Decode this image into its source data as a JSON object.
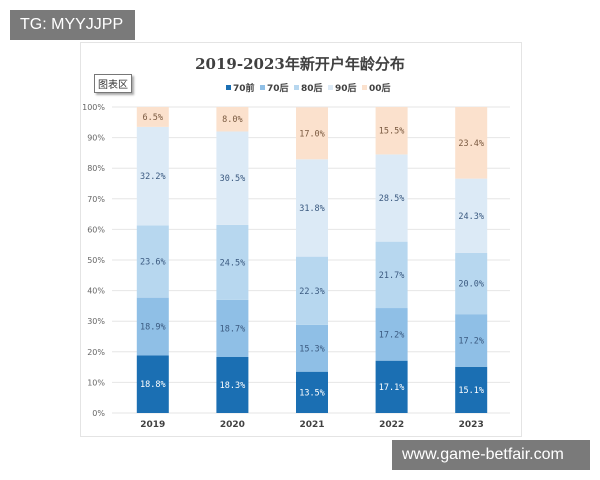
{
  "overlay": {
    "tag": "TG: MYYJJPP",
    "site": "www.game-betfair.com"
  },
  "chart_area_label": "图表区",
  "chart_data": {
    "type": "bar",
    "stacked": true,
    "percent": true,
    "title": "2019-2023年新开户年龄分布",
    "xlabel": "",
    "ylabel": "",
    "categories": [
      "2019",
      "2020",
      "2021",
      "2022",
      "2023"
    ],
    "ylim": [
      0,
      100
    ],
    "yticks": [
      "0%",
      "10%",
      "20%",
      "30%",
      "40%",
      "50%",
      "60%",
      "70%",
      "80%",
      "90%",
      "100%"
    ],
    "grid": true,
    "legend": "top-center",
    "series": [
      {
        "name": "70前",
        "color": "#1b6fb3",
        "label_color": "#ffffff",
        "values": [
          18.8,
          18.3,
          13.5,
          17.1,
          15.1
        ],
        "labels": [
          "18.8%",
          "18.3%",
          "13.5%",
          "17.1%",
          "15.1%"
        ]
      },
      {
        "name": "70后",
        "color": "#8fbfe6",
        "label_color": "#3b5a80",
        "values": [
          18.9,
          18.7,
          15.3,
          17.2,
          17.2
        ],
        "labels": [
          "18.9%",
          "18.7%",
          "15.3%",
          "17.2%",
          "17.2%"
        ]
      },
      {
        "name": "80后",
        "color": "#b7d7ef",
        "label_color": "#3b5a80",
        "values": [
          23.6,
          24.5,
          22.3,
          21.7,
          20.0
        ],
        "labels": [
          "23.6%",
          "24.5%",
          "22.3%",
          "21.7%",
          "20.0%"
        ]
      },
      {
        "name": "90后",
        "color": "#dceaf6",
        "label_color": "#3b5a80",
        "values": [
          32.2,
          30.5,
          31.8,
          28.5,
          24.3
        ],
        "labels": [
          "32.2%",
          "30.5%",
          "31.8%",
          "28.5%",
          "24.3%"
        ]
      },
      {
        "name": "00后",
        "color": "#fbe1cd",
        "label_color": "#7a5a40",
        "values": [
          6.5,
          8.0,
          17.0,
          15.5,
          23.4
        ],
        "labels": [
          "6.5%",
          "8.0%",
          "17.0%",
          "15.5%",
          "23.4%"
        ]
      }
    ]
  }
}
